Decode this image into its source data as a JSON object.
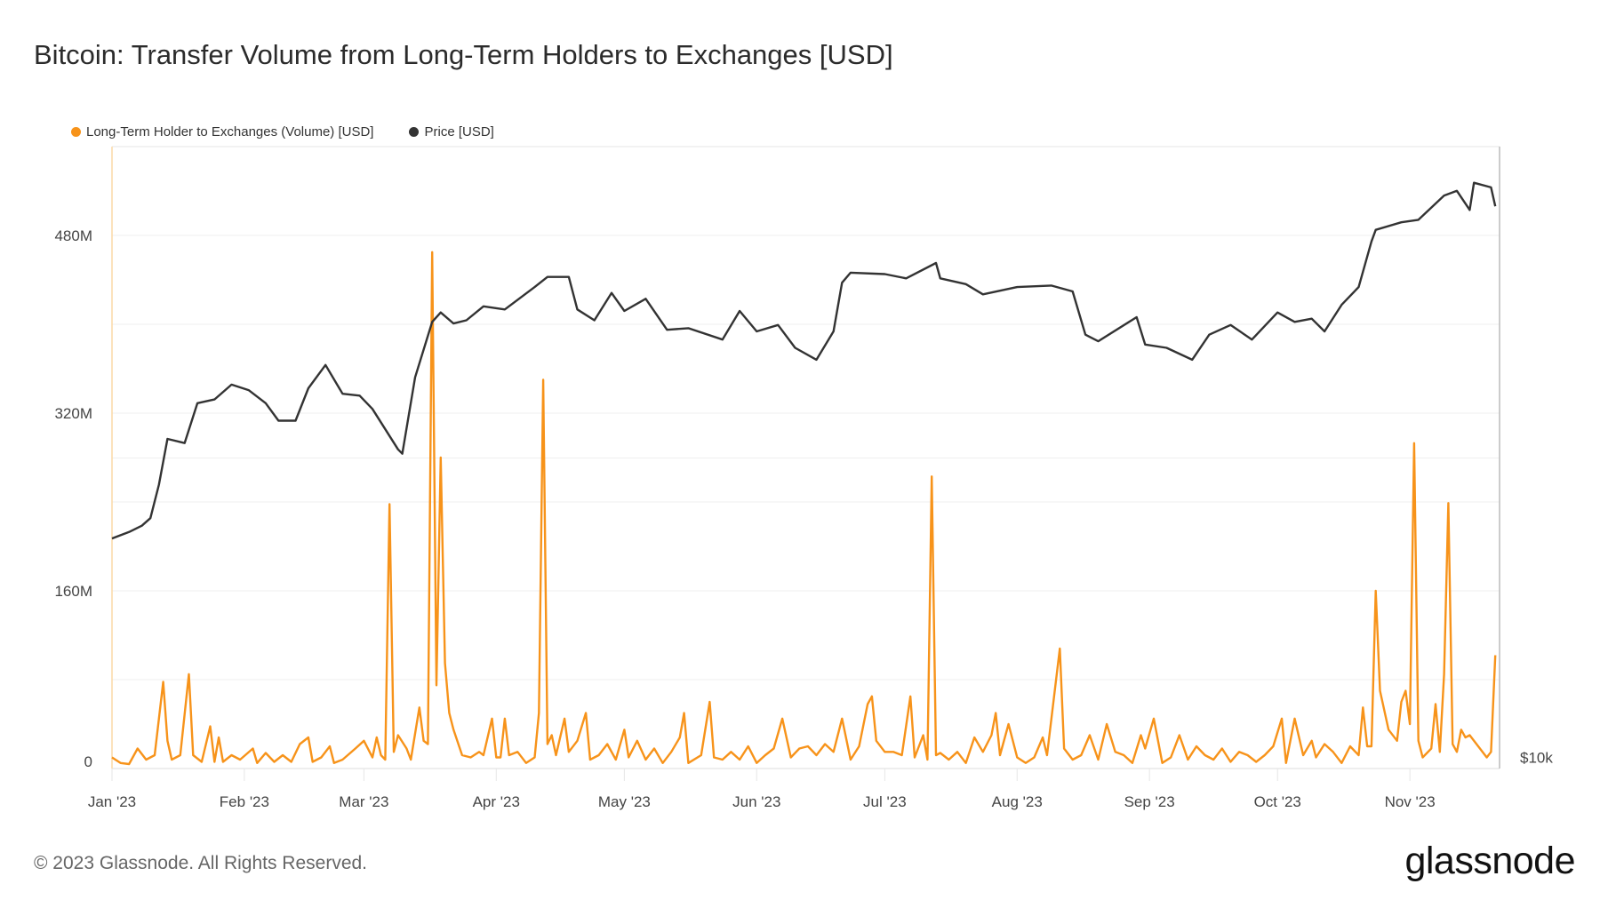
{
  "title": "Bitcoin: Transfer Volume from Long-Term Holders to Exchanges [USD]",
  "footer": "© 2023 Glassnode. All Rights Reserved.",
  "logo": "glassnode",
  "colors": {
    "volume": "#f7931a",
    "price": "#333333",
    "grid": "#efefef"
  },
  "chart_data": {
    "type": "line",
    "title": "Bitcoin: Transfer Volume from Long-Term Holders to Exchanges [USD]",
    "legend_position": "top-left",
    "grid": true,
    "x_ticks": [
      {
        "date": "2023-01-01",
        "label": "Jan '23"
      },
      {
        "date": "2023-02-01",
        "label": "Feb '23"
      },
      {
        "date": "2023-03-01",
        "label": "Mar '23"
      },
      {
        "date": "2023-04-01",
        "label": "Apr '23"
      },
      {
        "date": "2023-05-01",
        "label": "May '23"
      },
      {
        "date": "2023-06-01",
        "label": "Jun '23"
      },
      {
        "date": "2023-07-01",
        "label": "Jul '23"
      },
      {
        "date": "2023-08-01",
        "label": "Aug '23"
      },
      {
        "date": "2023-09-01",
        "label": "Sep '23"
      },
      {
        "date": "2023-10-01",
        "label": "Oct '23"
      },
      {
        "date": "2023-11-01",
        "label": "Nov '23"
      }
    ],
    "xlim": [
      "2023-01-01",
      "2023-11-22"
    ],
    "y_left": {
      "unit": "USD",
      "scale": "linear",
      "ylim": [
        0,
        560
      ],
      "ticks": [
        {
          "value": 0,
          "label": "0"
        },
        {
          "value": 160,
          "label": "160M"
        },
        {
          "value": 320,
          "label": "320M"
        },
        {
          "value": 480,
          "label": "480M"
        }
      ],
      "gridlines": [
        0,
        80,
        160,
        240,
        320,
        400,
        480
      ]
    },
    "y_right": {
      "unit": "USD",
      "scale": "log",
      "ylim": [
        9750,
        41100
      ],
      "ticks": [
        {
          "value": 10000,
          "label": "$10k"
        }
      ],
      "gridlines": [
        20000
      ]
    },
    "series": [
      {
        "name": "Long-Term Holder to Exchanges (Volume) [USD]",
        "axis": "left",
        "unit": "M USD",
        "color": "#f7931a",
        "points": [
          [
            "01-01",
            10
          ],
          [
            "01-03",
            5
          ],
          [
            "01-05",
            4
          ],
          [
            "01-07",
            18
          ],
          [
            "01-09",
            8
          ],
          [
            "01-11",
            12
          ],
          [
            "01-13",
            78
          ],
          [
            "01-14",
            25
          ],
          [
            "01-15",
            8
          ],
          [
            "01-17",
            12
          ],
          [
            "01-19",
            85
          ],
          [
            "01-20",
            12
          ],
          [
            "01-22",
            6
          ],
          [
            "01-24",
            38
          ],
          [
            "01-25",
            6
          ],
          [
            "01-26",
            28
          ],
          [
            "01-27",
            6
          ],
          [
            "01-29",
            12
          ],
          [
            "01-31",
            8
          ],
          [
            "02-03",
            18
          ],
          [
            "02-04",
            5
          ],
          [
            "02-06",
            14
          ],
          [
            "02-08",
            6
          ],
          [
            "02-10",
            12
          ],
          [
            "02-12",
            6
          ],
          [
            "02-14",
            22
          ],
          [
            "02-16",
            28
          ],
          [
            "02-17",
            6
          ],
          [
            "02-19",
            10
          ],
          [
            "02-21",
            20
          ],
          [
            "02-22",
            5
          ],
          [
            "02-24",
            8
          ],
          [
            "02-27",
            18
          ],
          [
            "03-01",
            25
          ],
          [
            "03-03",
            10
          ],
          [
            "03-04",
            28
          ],
          [
            "03-05",
            12
          ],
          [
            "03-06",
            8
          ],
          [
            "03-07",
            238
          ],
          [
            "03-08",
            15
          ],
          [
            "03-09",
            30
          ],
          [
            "03-11",
            18
          ],
          [
            "03-12",
            8
          ],
          [
            "03-14",
            55
          ],
          [
            "03-15",
            25
          ],
          [
            "03-16",
            22
          ],
          [
            "03-17",
            465
          ],
          [
            "03-18",
            75
          ],
          [
            "03-19",
            280
          ],
          [
            "03-20",
            95
          ],
          [
            "03-21",
            50
          ],
          [
            "03-22",
            35
          ],
          [
            "03-24",
            12
          ],
          [
            "03-26",
            10
          ],
          [
            "03-28",
            15
          ],
          [
            "03-29",
            12
          ],
          [
            "03-31",
            45
          ],
          [
            "04-01",
            10
          ],
          [
            "04-02",
            10
          ],
          [
            "04-03",
            45
          ],
          [
            "04-04",
            12
          ],
          [
            "04-06",
            15
          ],
          [
            "04-08",
            5
          ],
          [
            "04-10",
            10
          ],
          [
            "04-11",
            50
          ],
          [
            "04-12",
            350
          ],
          [
            "04-13",
            22
          ],
          [
            "04-14",
            30
          ],
          [
            "04-15",
            12
          ],
          [
            "04-17",
            45
          ],
          [
            "04-18",
            15
          ],
          [
            "04-20",
            25
          ],
          [
            "04-22",
            50
          ],
          [
            "04-23",
            8
          ],
          [
            "04-25",
            12
          ],
          [
            "04-27",
            22
          ],
          [
            "04-29",
            8
          ],
          [
            "05-01",
            35
          ],
          [
            "05-02",
            10
          ],
          [
            "05-04",
            25
          ],
          [
            "05-06",
            8
          ],
          [
            "05-08",
            18
          ],
          [
            "05-10",
            5
          ],
          [
            "05-12",
            15
          ],
          [
            "05-14",
            28
          ],
          [
            "05-15",
            50
          ],
          [
            "05-16",
            5
          ],
          [
            "05-19",
            12
          ],
          [
            "05-21",
            60
          ],
          [
            "05-22",
            10
          ],
          [
            "05-24",
            8
          ],
          [
            "05-26",
            15
          ],
          [
            "05-28",
            8
          ],
          [
            "05-30",
            20
          ],
          [
            "06-01",
            5
          ],
          [
            "06-03",
            12
          ],
          [
            "06-05",
            18
          ],
          [
            "06-07",
            45
          ],
          [
            "06-09",
            10
          ],
          [
            "06-11",
            18
          ],
          [
            "06-13",
            20
          ],
          [
            "06-15",
            12
          ],
          [
            "06-17",
            22
          ],
          [
            "06-19",
            15
          ],
          [
            "06-21",
            45
          ],
          [
            "06-23",
            8
          ],
          [
            "06-25",
            20
          ],
          [
            "06-27",
            58
          ],
          [
            "06-28",
            65
          ],
          [
            "06-29",
            25
          ],
          [
            "07-01",
            15
          ],
          [
            "07-03",
            15
          ],
          [
            "07-05",
            12
          ],
          [
            "07-07",
            65
          ],
          [
            "07-08",
            10
          ],
          [
            "07-10",
            30
          ],
          [
            "07-11",
            8
          ],
          [
            "07-12",
            263
          ],
          [
            "07-13",
            12
          ],
          [
            "07-14",
            14
          ],
          [
            "07-16",
            8
          ],
          [
            "07-18",
            15
          ],
          [
            "07-20",
            5
          ],
          [
            "07-22",
            28
          ],
          [
            "07-24",
            15
          ],
          [
            "07-26",
            30
          ],
          [
            "07-27",
            50
          ],
          [
            "07-28",
            12
          ],
          [
            "07-30",
            40
          ],
          [
            "08-01",
            10
          ],
          [
            "08-03",
            5
          ],
          [
            "08-05",
            10
          ],
          [
            "08-07",
            28
          ],
          [
            "08-08",
            12
          ],
          [
            "08-11",
            108
          ],
          [
            "08-12",
            18
          ],
          [
            "08-14",
            8
          ],
          [
            "08-16",
            12
          ],
          [
            "08-18",
            30
          ],
          [
            "08-20",
            8
          ],
          [
            "08-22",
            40
          ],
          [
            "08-24",
            15
          ],
          [
            "08-26",
            12
          ],
          [
            "08-28",
            5
          ],
          [
            "08-30",
            30
          ],
          [
            "08-31",
            18
          ],
          [
            "09-02",
            45
          ],
          [
            "09-04",
            5
          ],
          [
            "09-06",
            10
          ],
          [
            "09-08",
            30
          ],
          [
            "09-10",
            8
          ],
          [
            "09-12",
            20
          ],
          [
            "09-14",
            12
          ],
          [
            "09-16",
            8
          ],
          [
            "09-18",
            18
          ],
          [
            "09-20",
            6
          ],
          [
            "09-22",
            15
          ],
          [
            "09-24",
            12
          ],
          [
            "09-26",
            6
          ],
          [
            "09-28",
            12
          ],
          [
            "09-30",
            20
          ],
          [
            "10-02",
            45
          ],
          [
            "10-03",
            5
          ],
          [
            "10-05",
            45
          ],
          [
            "10-07",
            12
          ],
          [
            "10-09",
            25
          ],
          [
            "10-10",
            10
          ],
          [
            "10-12",
            22
          ],
          [
            "10-14",
            15
          ],
          [
            "10-16",
            5
          ],
          [
            "10-18",
            20
          ],
          [
            "10-20",
            12
          ],
          [
            "10-21",
            55
          ],
          [
            "10-22",
            20
          ],
          [
            "10-23",
            20
          ],
          [
            "10-24",
            160
          ],
          [
            "10-25",
            70
          ],
          [
            "10-27",
            35
          ],
          [
            "10-29",
            25
          ],
          [
            "10-30",
            60
          ],
          [
            "10-31",
            70
          ],
          [
            "11-01",
            40
          ],
          [
            "11-02",
            293
          ],
          [
            "11-03",
            25
          ],
          [
            "11-04",
            10
          ],
          [
            "11-06",
            18
          ],
          [
            "11-07",
            58
          ],
          [
            "11-08",
            15
          ],
          [
            "11-09",
            85
          ],
          [
            "11-10",
            239
          ],
          [
            "11-11",
            22
          ],
          [
            "11-12",
            15
          ],
          [
            "11-13",
            35
          ],
          [
            "11-14",
            28
          ],
          [
            "11-15",
            30
          ],
          [
            "11-17",
            20
          ],
          [
            "11-19",
            10
          ],
          [
            "11-20",
            15
          ],
          [
            "11-21",
            102
          ]
        ]
      },
      {
        "name": "Price [USD]",
        "axis": "right",
        "unit": "USD",
        "color": "#333333",
        "points": [
          [
            "01-01",
            16600
          ],
          [
            "01-05",
            16850
          ],
          [
            "01-08",
            17100
          ],
          [
            "01-10",
            17400
          ],
          [
            "01-12",
            18800
          ],
          [
            "01-14",
            20900
          ],
          [
            "01-18",
            20700
          ],
          [
            "01-21",
            22700
          ],
          [
            "01-25",
            22900
          ],
          [
            "01-29",
            23700
          ],
          [
            "02-02",
            23400
          ],
          [
            "02-06",
            22700
          ],
          [
            "02-09",
            21800
          ],
          [
            "02-13",
            21800
          ],
          [
            "02-16",
            23500
          ],
          [
            "02-20",
            24800
          ],
          [
            "02-24",
            23200
          ],
          [
            "02-28",
            23100
          ],
          [
            "03-03",
            22400
          ],
          [
            "03-09",
            20400
          ],
          [
            "03-10",
            20200
          ],
          [
            "03-13",
            24100
          ],
          [
            "03-17",
            27400
          ],
          [
            "03-19",
            28000
          ],
          [
            "03-22",
            27300
          ],
          [
            "03-25",
            27500
          ],
          [
            "03-29",
            28400
          ],
          [
            "04-03",
            28200
          ],
          [
            "04-10",
            29700
          ],
          [
            "04-13",
            30400
          ],
          [
            "04-18",
            30400
          ],
          [
            "04-20",
            28200
          ],
          [
            "04-24",
            27500
          ],
          [
            "04-28",
            29300
          ],
          [
            "05-01",
            28100
          ],
          [
            "05-06",
            28900
          ],
          [
            "05-11",
            26900
          ],
          [
            "05-16",
            27000
          ],
          [
            "05-24",
            26300
          ],
          [
            "05-28",
            28100
          ],
          [
            "06-01",
            26800
          ],
          [
            "06-06",
            27200
          ],
          [
            "06-10",
            25800
          ],
          [
            "06-15",
            25100
          ],
          [
            "06-19",
            26800
          ],
          [
            "06-21",
            30000
          ],
          [
            "06-23",
            30700
          ],
          [
            "07-01",
            30600
          ],
          [
            "07-06",
            30300
          ],
          [
            "07-13",
            31400
          ],
          [
            "07-14",
            30300
          ],
          [
            "07-20",
            29900
          ],
          [
            "07-24",
            29200
          ],
          [
            "08-01",
            29700
          ],
          [
            "08-09",
            29800
          ],
          [
            "08-14",
            29400
          ],
          [
            "08-17",
            26600
          ],
          [
            "08-20",
            26200
          ],
          [
            "08-29",
            27700
          ],
          [
            "08-31",
            26000
          ],
          [
            "09-05",
            25800
          ],
          [
            "09-11",
            25100
          ],
          [
            "09-15",
            26600
          ],
          [
            "09-20",
            27200
          ],
          [
            "09-25",
            26300
          ],
          [
            "10-01",
            28000
          ],
          [
            "10-05",
            27400
          ],
          [
            "10-09",
            27600
          ],
          [
            "10-12",
            26800
          ],
          [
            "10-16",
            28500
          ],
          [
            "10-20",
            29700
          ],
          [
            "10-23",
            33000
          ],
          [
            "10-24",
            33900
          ],
          [
            "10-30",
            34500
          ],
          [
            "11-03",
            34700
          ],
          [
            "11-09",
            36700
          ],
          [
            "11-12",
            37100
          ],
          [
            "11-15",
            35500
          ],
          [
            "11-16",
            37800
          ],
          [
            "11-20",
            37400
          ],
          [
            "11-21",
            35800
          ]
        ]
      }
    ]
  }
}
